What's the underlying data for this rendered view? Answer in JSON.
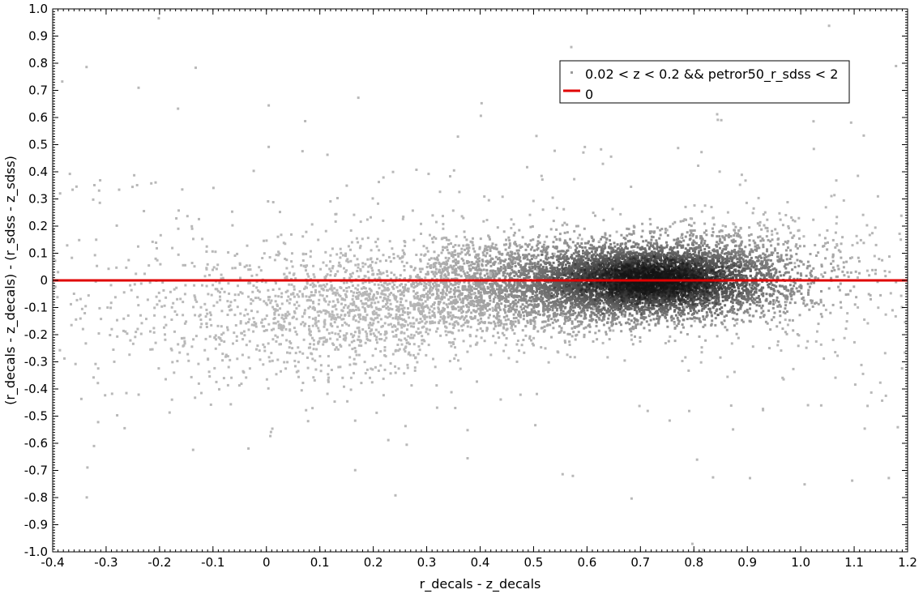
{
  "chart_data": {
    "type": "scatter",
    "xlabel": "r_decals - z_decals",
    "ylabel": "(r_decals - z_decals) - (r_sdss - z_sdss)",
    "xlim": [
      -0.4,
      1.2
    ],
    "ylim": [
      -1.0,
      1.0
    ],
    "xticks": [
      "-0.4",
      "-0.3",
      "-0.2",
      "-0.1",
      "0",
      "0.1",
      "0.2",
      "0.3",
      "0.4",
      "0.5",
      "0.6",
      "0.7",
      "0.8",
      "0.9",
      "1.0",
      "1.1",
      "1.2"
    ],
    "yticks": [
      "1.0",
      "0.9",
      "0.8",
      "0.7",
      "0.6",
      "0.5",
      "0.4",
      "0.3",
      "0.2",
      "0.1",
      "0",
      "-0.1",
      "-0.2",
      "-0.3",
      "-0.4",
      "-0.5",
      "-0.6",
      "-0.7",
      "-0.8",
      "-0.9",
      "-1.0"
    ],
    "grid": false,
    "legend_position": "top-right",
    "series": [
      {
        "name": "0.02 < z < 0.2 && petror50_r_sdss < 2",
        "kind": "density-scatter",
        "color": "#9a9a9a",
        "dense_core": {
          "x": 0.72,
          "y": 0.0
        },
        "spread_x": [
          -0.4,
          1.2
        ],
        "spread_y": [
          -1.0,
          1.0
        ]
      },
      {
        "name": "0",
        "kind": "line",
        "color": "#e00000",
        "y": 0
      }
    ]
  }
}
